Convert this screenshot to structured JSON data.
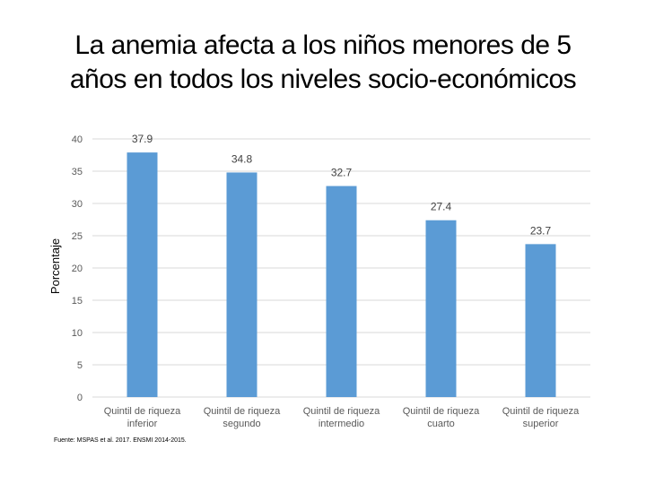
{
  "title": {
    "line1": "La anemia afecta a los niños menores de 5",
    "line2": "años en todos los niveles socio-económicos"
  },
  "source": "Fuente: MSPAS et al. 2017. ENSMI 2014-2015.",
  "colors": {
    "bar": "#5b9bd5",
    "gridline": "#d9d9d9",
    "axis_text": "#595959"
  },
  "chart_data": {
    "type": "bar",
    "title": "",
    "xlabel": "",
    "ylabel": "Porcentaje",
    "ylim": [
      0,
      40
    ],
    "yticks": [
      0,
      5,
      10,
      15,
      20,
      25,
      30,
      35,
      40
    ],
    "grid": true,
    "legend": "none",
    "categories": [
      [
        "Quintil de riqueza",
        "inferior"
      ],
      [
        "Quintil de riqueza",
        "segundo"
      ],
      [
        "Quintil de riqueza",
        "intermedio"
      ],
      [
        "Quintil de riqueza",
        "cuarto"
      ],
      [
        "Quintil de riqueza",
        "superior"
      ]
    ],
    "values": [
      37.9,
      34.8,
      32.7,
      27.4,
      23.7
    ],
    "data_labels": [
      "37.9",
      "34.8",
      "32.7",
      "27.4",
      "23.7"
    ]
  }
}
